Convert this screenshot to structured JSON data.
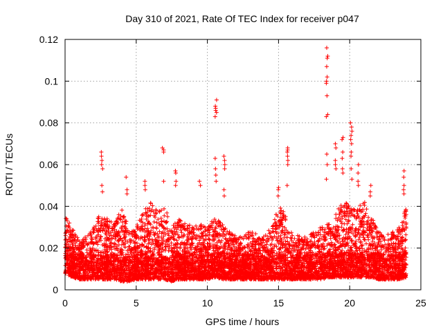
{
  "chart_data": {
    "type": "scatter",
    "title": "Day 310 of 2021, Rate Of TEC Index for receiver p047",
    "xlabel": "GPS time / hours",
    "ylabel": "ROTI / TECUs",
    "xlim": [
      0,
      25
    ],
    "ylim": [
      0,
      0.12
    ],
    "x_ticks": [
      0,
      5,
      10,
      15,
      20,
      25
    ],
    "x_tick_labels": [
      "0",
      "5",
      "10",
      "15",
      "20",
      "25"
    ],
    "y_ticks": [
      0,
      0.02,
      0.04,
      0.06,
      0.08,
      0.1,
      0.12
    ],
    "y_tick_labels": [
      "0",
      "0.02",
      "0.04",
      "0.06",
      "0.08",
      "0.1",
      "0.12"
    ],
    "grid": true,
    "marker": "+",
    "series_color": "#ff0000",
    "baseline": {
      "description": "approximate local range of the dense point cloud (hours, ROTI low, ROTI high)",
      "hours": [
        0,
        0.5,
        1,
        1.5,
        2,
        2.5,
        3,
        3.5,
        4,
        4.5,
        5,
        5.5,
        6,
        6.5,
        7,
        7.5,
        8,
        8.5,
        9,
        9.5,
        10,
        10.5,
        11,
        11.5,
        12,
        12.5,
        13,
        13.5,
        14,
        14.5,
        15,
        15.5,
        16,
        16.5,
        17,
        17.5,
        18,
        18.5,
        19,
        19.5,
        20,
        20.5,
        21,
        21.5,
        22,
        22.5,
        23,
        23.5,
        24
      ],
      "low": [
        0.008,
        0.006,
        0.005,
        0.005,
        0.005,
        0.005,
        0.005,
        0.005,
        0.004,
        0.004,
        0.005,
        0.005,
        0.005,
        0.005,
        0.005,
        0.004,
        0.005,
        0.005,
        0.005,
        0.005,
        0.005,
        0.006,
        0.005,
        0.005,
        0.005,
        0.005,
        0.005,
        0.005,
        0.005,
        0.005,
        0.005,
        0.005,
        0.005,
        0.005,
        0.005,
        0.005,
        0.005,
        0.006,
        0.006,
        0.006,
        0.006,
        0.006,
        0.006,
        0.006,
        0.005,
        0.005,
        0.005,
        0.005,
        0.006
      ],
      "high": [
        0.036,
        0.03,
        0.024,
        0.026,
        0.03,
        0.038,
        0.034,
        0.032,
        0.04,
        0.028,
        0.03,
        0.038,
        0.042,
        0.038,
        0.04,
        0.03,
        0.034,
        0.032,
        0.03,
        0.032,
        0.03,
        0.036,
        0.032,
        0.028,
        0.026,
        0.026,
        0.028,
        0.028,
        0.026,
        0.03,
        0.044,
        0.036,
        0.026,
        0.026,
        0.026,
        0.028,
        0.03,
        0.032,
        0.036,
        0.044,
        0.04,
        0.038,
        0.044,
        0.036,
        0.028,
        0.026,
        0.028,
        0.03,
        0.04
      ]
    },
    "peaks": [
      {
        "x": 2.6,
        "y": [
          0.066,
          0.064,
          0.062,
          0.06,
          0.058,
          0.05,
          0.047
        ]
      },
      {
        "x": 4.3,
        "y": [
          0.054,
          0.048,
          0.046
        ]
      },
      {
        "x": 5.6,
        "y": [
          0.052,
          0.05,
          0.048
        ]
      },
      {
        "x": 6.9,
        "y": [
          0.068,
          0.067,
          0.066,
          0.052
        ]
      },
      {
        "x": 7.8,
        "y": [
          0.057,
          0.056,
          0.052,
          0.05
        ]
      },
      {
        "x": 9.5,
        "y": [
          0.052,
          0.05
        ]
      },
      {
        "x": 10.6,
        "y": [
          0.091,
          0.088,
          0.087,
          0.086,
          0.085,
          0.083,
          0.063,
          0.058,
          0.055,
          0.052
        ]
      },
      {
        "x": 11.2,
        "y": [
          0.064,
          0.062,
          0.06,
          0.058,
          0.048,
          0.045
        ]
      },
      {
        "x": 15.0,
        "y": [
          0.049,
          0.048,
          0.045
        ]
      },
      {
        "x": 15.6,
        "y": [
          0.068,
          0.067,
          0.066,
          0.064,
          0.062,
          0.06,
          0.05
        ]
      },
      {
        "x": 18.4,
        "y": [
          0.116,
          0.112,
          0.111,
          0.107,
          0.102,
          0.1,
          0.099,
          0.093,
          0.084,
          0.083,
          0.065,
          0.06,
          0.053
        ]
      },
      {
        "x": 19.0,
        "y": [
          0.07,
          0.068,
          0.062,
          0.06,
          0.058
        ]
      },
      {
        "x": 19.5,
        "y": [
          0.073,
          0.072,
          0.066,
          0.063,
          0.058,
          0.056
        ]
      },
      {
        "x": 20.1,
        "y": [
          0.08,
          0.078,
          0.076,
          0.074,
          0.072,
          0.07,
          0.066,
          0.064,
          0.058,
          0.053
        ]
      },
      {
        "x": 20.6,
        "y": [
          0.06,
          0.056,
          0.052,
          0.05
        ]
      },
      {
        "x": 21.5,
        "y": [
          0.05,
          0.047,
          0.045
        ]
      },
      {
        "x": 23.8,
        "y": [
          0.057,
          0.054,
          0.05,
          0.048,
          0.046
        ]
      }
    ]
  }
}
